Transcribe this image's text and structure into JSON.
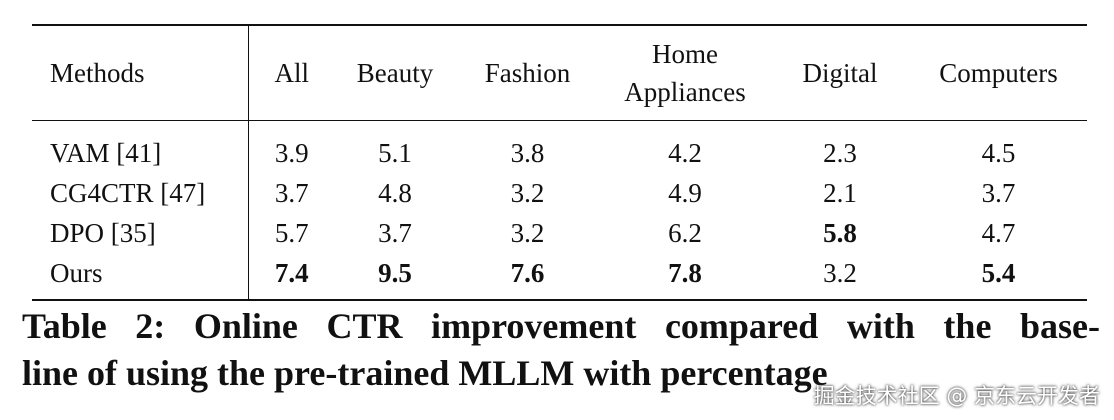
{
  "table": {
    "header": [
      "Methods",
      "All",
      "Beauty",
      "Fashion",
      "Home Appliances",
      "Digital",
      "Computers"
    ],
    "rows": [
      [
        "VAM [41]",
        3.9,
        5.1,
        3.8,
        4.2,
        2.3,
        4.5
      ],
      [
        "CG4CTR [47]",
        3.7,
        4.8,
        3.2,
        4.9,
        2.1,
        3.7
      ],
      [
        "DPO [35]",
        5.7,
        3.7,
        3.2,
        6.2,
        5.8,
        4.7
      ],
      [
        "Ours",
        7.4,
        9.5,
        7.6,
        7.8,
        3.2,
        5.4
      ]
    ],
    "bold": [
      [
        false,
        false,
        false,
        false,
        false,
        false,
        false
      ],
      [
        false,
        false,
        false,
        false,
        false,
        false,
        false
      ],
      [
        false,
        false,
        false,
        false,
        false,
        true,
        false
      ],
      [
        false,
        true,
        true,
        true,
        true,
        false,
        true
      ]
    ]
  },
  "caption": [
    "Table 2: Online CTR improvement compared with the base-",
    "line of using the pre-trained MLLM with percentage"
  ],
  "watermark": "掘金技术社区 @ 京东云开发者"
}
